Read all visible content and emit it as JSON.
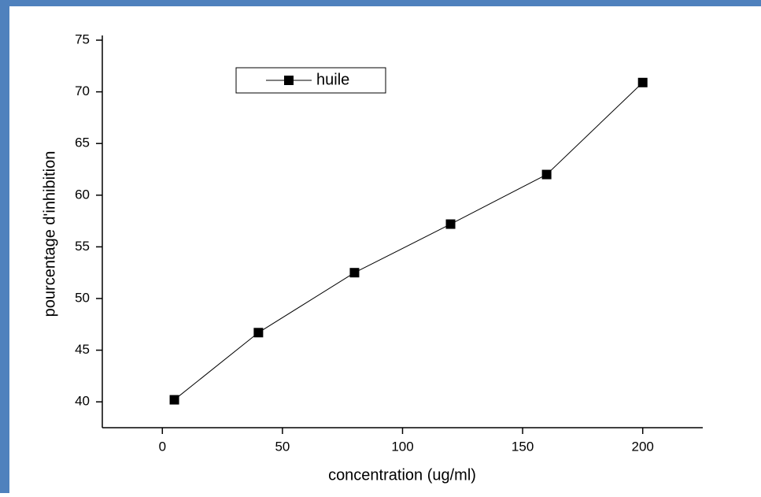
{
  "chart_data": {
    "type": "line",
    "x_label": "concentration (ug/ml)",
    "y_label": "pourcentage d'inhibition",
    "x": [
      5,
      40,
      80,
      120,
      160,
      200
    ],
    "series": [
      {
        "name": "huile",
        "color": "#000000",
        "values": [
          40.2,
          46.7,
          52.5,
          57.2,
          62.0,
          70.9
        ]
      }
    ],
    "xlim": [
      -25,
      225
    ],
    "xticks": [
      0,
      50,
      100,
      150,
      200
    ],
    "ylim": [
      37.5,
      75
    ],
    "yticks": [
      40,
      45,
      50,
      55,
      60,
      65,
      70,
      75
    ],
    "grid": false,
    "legend": "upper left"
  }
}
